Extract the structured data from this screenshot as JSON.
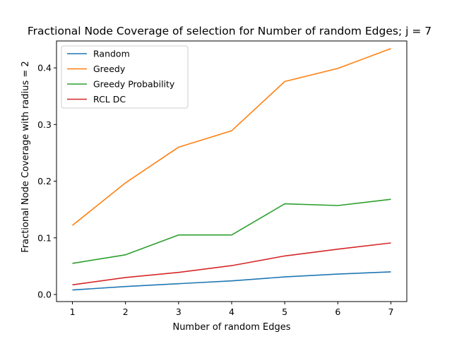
{
  "chart_data": {
    "type": "line",
    "title": "Fractional Node Coverage of selection for Number of random Edges; j = 7",
    "xlabel": "Number of random Edges",
    "ylabel": "Fractional Node Coverage with radius = 2",
    "x": [
      1,
      2,
      3,
      4,
      5,
      6,
      7
    ],
    "xlim": [
      0.7,
      7.3
    ],
    "ylim": [
      -0.0125,
      0.4475
    ],
    "xticks": [
      1,
      2,
      3,
      4,
      5,
      6,
      7
    ],
    "yticks": [
      0.0,
      0.1,
      0.2,
      0.3,
      0.4
    ],
    "ytick_labels": [
      "0.0",
      "0.1",
      "0.2",
      "0.3",
      "0.4"
    ],
    "legend_position": "upper-left",
    "grid": false,
    "series": [
      {
        "name": "Random",
        "color": "#1f77b4",
        "values": [
          0.008,
          0.014,
          0.019,
          0.024,
          0.031,
          0.036,
          0.04
        ]
      },
      {
        "name": "Greedy",
        "color": "#ff7f0e",
        "values": [
          0.122,
          0.197,
          0.26,
          0.289,
          0.376,
          0.399,
          0.434
        ]
      },
      {
        "name": "Greedy Probability",
        "color": "#2ca02c",
        "values": [
          0.055,
          0.07,
          0.105,
          0.105,
          0.16,
          0.157,
          0.168
        ]
      },
      {
        "name": "RCL DC",
        "color": "#d62728",
        "values": [
          0.017,
          0.03,
          0.039,
          0.051,
          0.068,
          0.08,
          0.091
        ]
      }
    ]
  }
}
